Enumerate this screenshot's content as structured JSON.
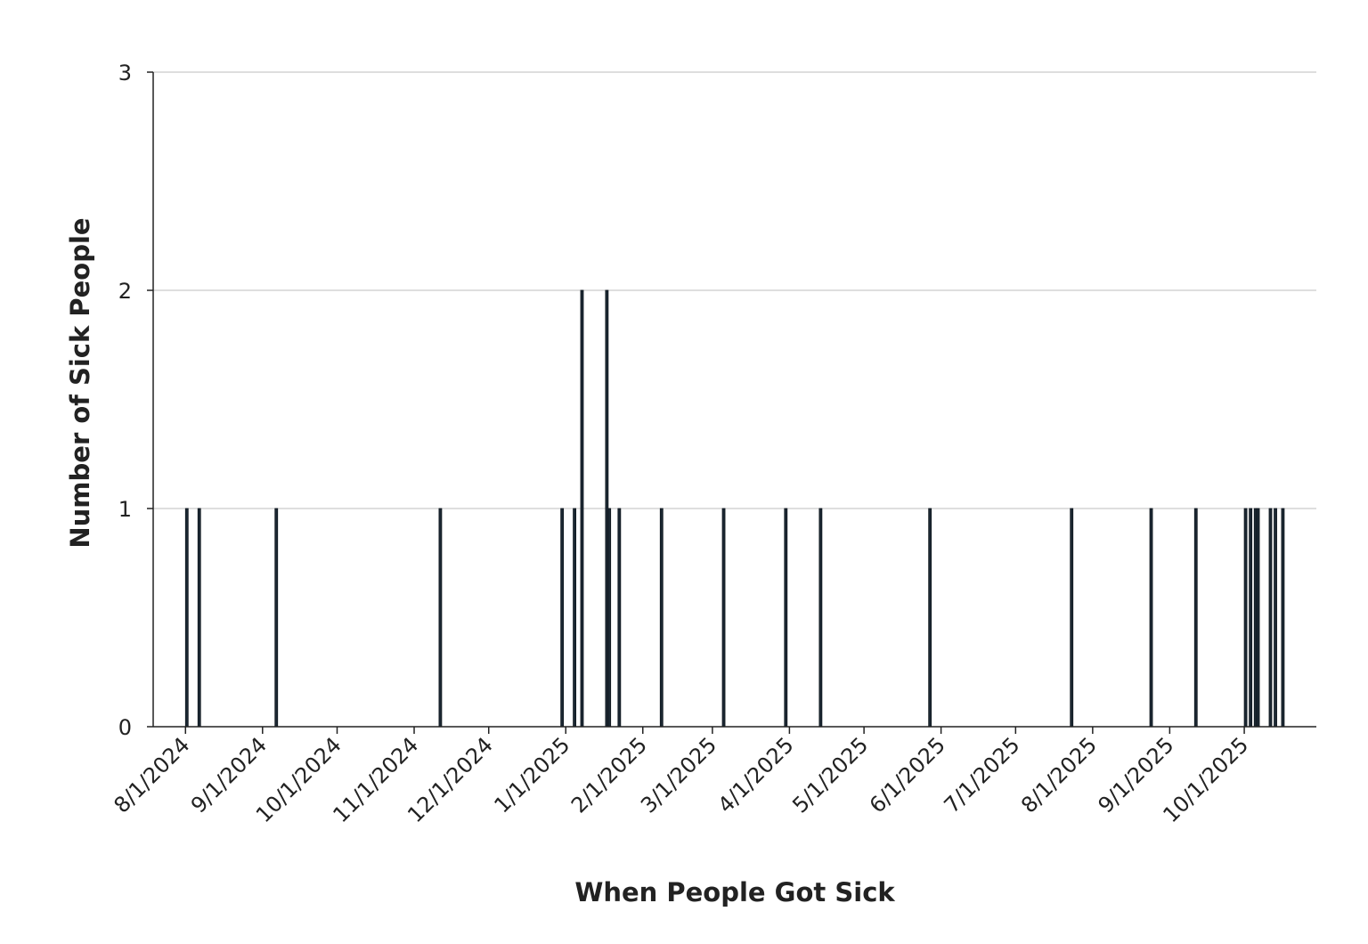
{
  "chart_data": {
    "type": "bar",
    "x_label": "When People Got Sick",
    "y_label": "Number of Sick People",
    "x": [
      "2024-08-01",
      "2024-08-06",
      "2024-09-06",
      "2024-11-11",
      "2024-12-30",
      "2025-01-04",
      "2025-01-07",
      "2025-01-17",
      "2025-01-18",
      "2025-01-22",
      "2025-02-08",
      "2025-03-05",
      "2025-03-30",
      "2025-04-13",
      "2025-05-27",
      "2025-07-23",
      "2025-08-24",
      "2025-09-11",
      "2025-10-01",
      "2025-10-03",
      "2025-10-05",
      "2025-10-06",
      "2025-10-11",
      "2025-10-13",
      "2025-10-16"
    ],
    "values": [
      1,
      1,
      1,
      1,
      1,
      1,
      2,
      2,
      1,
      1,
      1,
      1,
      1,
      1,
      1,
      1,
      1,
      1,
      1,
      1,
      1,
      1,
      1,
      1,
      1
    ],
    "color": "#1c2833",
    "xlim": [
      "2024-07-19",
      "2025-10-30"
    ],
    "xticks": [
      {
        "value": "2024-08-01",
        "label": "8/1/2024"
      },
      {
        "value": "2024-09-01",
        "label": "9/1/2024"
      },
      {
        "value": "2024-10-01",
        "label": "10/1/2024"
      },
      {
        "value": "2024-11-01",
        "label": "11/1/2024"
      },
      {
        "value": "2024-12-01",
        "label": "12/1/2024"
      },
      {
        "value": "2025-01-01",
        "label": "1/1/2025"
      },
      {
        "value": "2025-02-01",
        "label": "2/1/2025"
      },
      {
        "value": "2025-03-01",
        "label": "3/1/2025"
      },
      {
        "value": "2025-04-01",
        "label": "4/1/2025"
      },
      {
        "value": "2025-05-01",
        "label": "5/1/2025"
      },
      {
        "value": "2025-06-01",
        "label": "6/1/2025"
      },
      {
        "value": "2025-07-01",
        "label": "7/1/2025"
      },
      {
        "value": "2025-08-01",
        "label": "8/1/2025"
      },
      {
        "value": "2025-09-01",
        "label": "9/1/2025"
      },
      {
        "value": "2025-10-01",
        "label": "10/1/2025"
      }
    ],
    "ylim": [
      0,
      3
    ],
    "yticks": [
      0,
      1,
      2,
      3
    ],
    "grid": true
  }
}
